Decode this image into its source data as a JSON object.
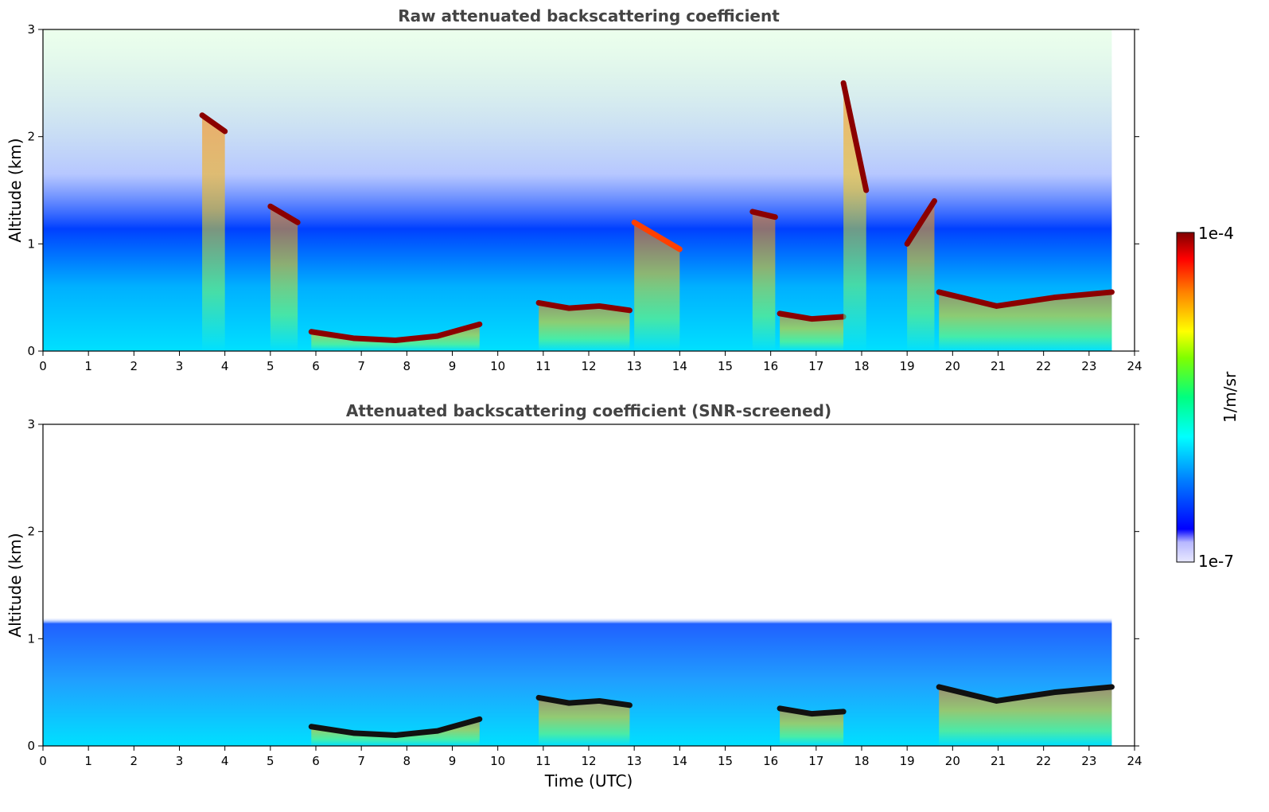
{
  "chart_data": [
    {
      "type": "heatmap",
      "title": "Raw attenuated backscattering coefficient",
      "xlabel": "",
      "ylabel": "Altitude (km)",
      "xlim": [
        0,
        24
      ],
      "ylim": [
        0,
        3
      ],
      "xticks": [
        "0",
        "1",
        "2",
        "3",
        "4",
        "5",
        "6",
        "7",
        "8",
        "9",
        "10",
        "11",
        "12",
        "13",
        "14",
        "15",
        "16",
        "17",
        "18",
        "19",
        "20",
        "21",
        "22",
        "23",
        "24"
      ],
      "yticks": [
        "0",
        "1",
        "2",
        "3"
      ],
      "data_end_hour": 23.5,
      "screened": false,
      "cloud_layers": [
        {
          "t_start": 5.9,
          "t_end": 9.6,
          "top_km": [
            0.18,
            0.12,
            0.1,
            0.14,
            0.25
          ],
          "intensity": "high"
        },
        {
          "t_start": 10.9,
          "t_end": 12.9,
          "top_km": [
            0.45,
            0.4,
            0.42,
            0.38
          ],
          "intensity": "high"
        },
        {
          "t_start": 16.2,
          "t_end": 17.6,
          "top_km": [
            0.35,
            0.3,
            0.32
          ],
          "intensity": "high"
        },
        {
          "t_start": 19.7,
          "t_end": 23.5,
          "top_km": [
            0.55,
            0.42,
            0.5,
            0.55
          ],
          "intensity": "high"
        },
        {
          "t_start": 3.5,
          "t_end": 4.0,
          "top_km": [
            2.2,
            2.05
          ],
          "intensity": "high"
        },
        {
          "t_start": 5.0,
          "t_end": 5.6,
          "top_km": [
            1.35,
            1.2
          ],
          "intensity": "high"
        },
        {
          "t_start": 13.0,
          "t_end": 14.0,
          "top_km": [
            1.2,
            0.95
          ],
          "intensity": "medium"
        },
        {
          "t_start": 15.6,
          "t_end": 16.1,
          "top_km": [
            1.3,
            1.25
          ],
          "intensity": "high"
        },
        {
          "t_start": 17.6,
          "t_end": 18.1,
          "top_km": [
            2.5,
            1.5
          ],
          "intensity": "high"
        },
        {
          "t_start": 19.0,
          "t_end": 19.6,
          "top_km": [
            1.0,
            1.4
          ],
          "intensity": "high"
        }
      ]
    },
    {
      "type": "heatmap",
      "title": "Attenuated backscattering coefficient (SNR-screened)",
      "xlabel": "Time (UTC)",
      "ylabel": "Altitude (km)",
      "xlim": [
        0,
        24
      ],
      "ylim": [
        0,
        3
      ],
      "xticks": [
        "0",
        "1",
        "2",
        "3",
        "4",
        "5",
        "6",
        "7",
        "8",
        "9",
        "10",
        "11",
        "12",
        "13",
        "14",
        "15",
        "16",
        "17",
        "18",
        "19",
        "20",
        "21",
        "22",
        "23",
        "24"
      ],
      "yticks": [
        "0",
        "1",
        "2",
        "3"
      ],
      "data_end_hour": 23.5,
      "screened": true,
      "cloud_layers": [
        {
          "t_start": 5.9,
          "t_end": 9.6,
          "top_km": [
            0.18,
            0.12,
            0.1,
            0.14,
            0.25
          ],
          "intensity": "high"
        },
        {
          "t_start": 10.9,
          "t_end": 12.9,
          "top_km": [
            0.45,
            0.4,
            0.42,
            0.38
          ],
          "intensity": "high"
        },
        {
          "t_start": 16.2,
          "t_end": 17.6,
          "top_km": [
            0.35,
            0.3,
            0.32
          ],
          "intensity": "high"
        },
        {
          "t_start": 19.7,
          "t_end": 23.5,
          "top_km": [
            0.55,
            0.42,
            0.5,
            0.55
          ],
          "intensity": "high"
        }
      ]
    }
  ],
  "colorbar": {
    "label": "1/m/sr",
    "max_label": "1e-4",
    "min_label": "1e-7",
    "colors": [
      "#e8e8ff",
      "#c8c8ff",
      "#0000ff",
      "#0080ff",
      "#00ffff",
      "#00ff80",
      "#80ff00",
      "#ffff00",
      "#ff8000",
      "#ff0000",
      "#800000"
    ]
  }
}
